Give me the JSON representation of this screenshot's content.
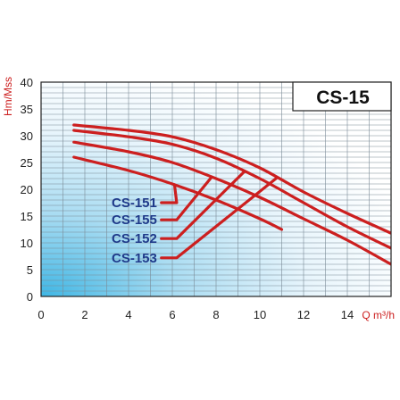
{
  "chart_data": {
    "type": "line",
    "title": "CS-15",
    "xlabel": "Q m³/h",
    "ylabel": "Hm/Mss",
    "xlim": [
      0,
      16
    ],
    "ylim": [
      0,
      40
    ],
    "x_ticks": [
      "0",
      "2",
      "4",
      "6",
      "8",
      "10",
      "12",
      "14"
    ],
    "y_ticks": [
      "0",
      "5",
      "10",
      "15",
      "20",
      "25",
      "30",
      "35",
      "40"
    ],
    "grid": true,
    "series": [
      {
        "name": "CS-151",
        "x": [
          1.5,
          4,
          6,
          8,
          10,
          11
        ],
        "y": [
          26,
          23.5,
          21,
          18,
          14.5,
          12.5
        ],
        "label_y": 17.5,
        "knee_x": 6.1
      },
      {
        "name": "CS-155",
        "x": [
          1.5,
          4,
          6,
          8,
          10,
          12,
          14,
          16
        ],
        "y": [
          28.8,
          27,
          25,
          22,
          18.5,
          14.5,
          10.5,
          6
        ],
        "label_y": 14.3,
        "knee_x": 7.8
      },
      {
        "name": "CS-152",
        "x": [
          1.5,
          4,
          6,
          8,
          10,
          12,
          14,
          16
        ],
        "y": [
          31,
          29.8,
          28.4,
          25.8,
          22,
          17.5,
          13,
          9
        ],
        "label_y": 10.8,
        "knee_x": 9.3
      },
      {
        "name": "CS-153",
        "x": [
          1.5,
          4,
          6,
          8,
          10,
          12,
          14,
          16
        ],
        "y": [
          32,
          31,
          29.8,
          27.4,
          24,
          19.5,
          15.5,
          11.8
        ],
        "label_y": 7.2,
        "knee_x": 10.8
      }
    ],
    "colors": {
      "curve": "#cc1f1f",
      "series_label": "#1f3a8a",
      "axis_label": "#cc1f1f",
      "background_glow": "#3fb6e4"
    }
  }
}
